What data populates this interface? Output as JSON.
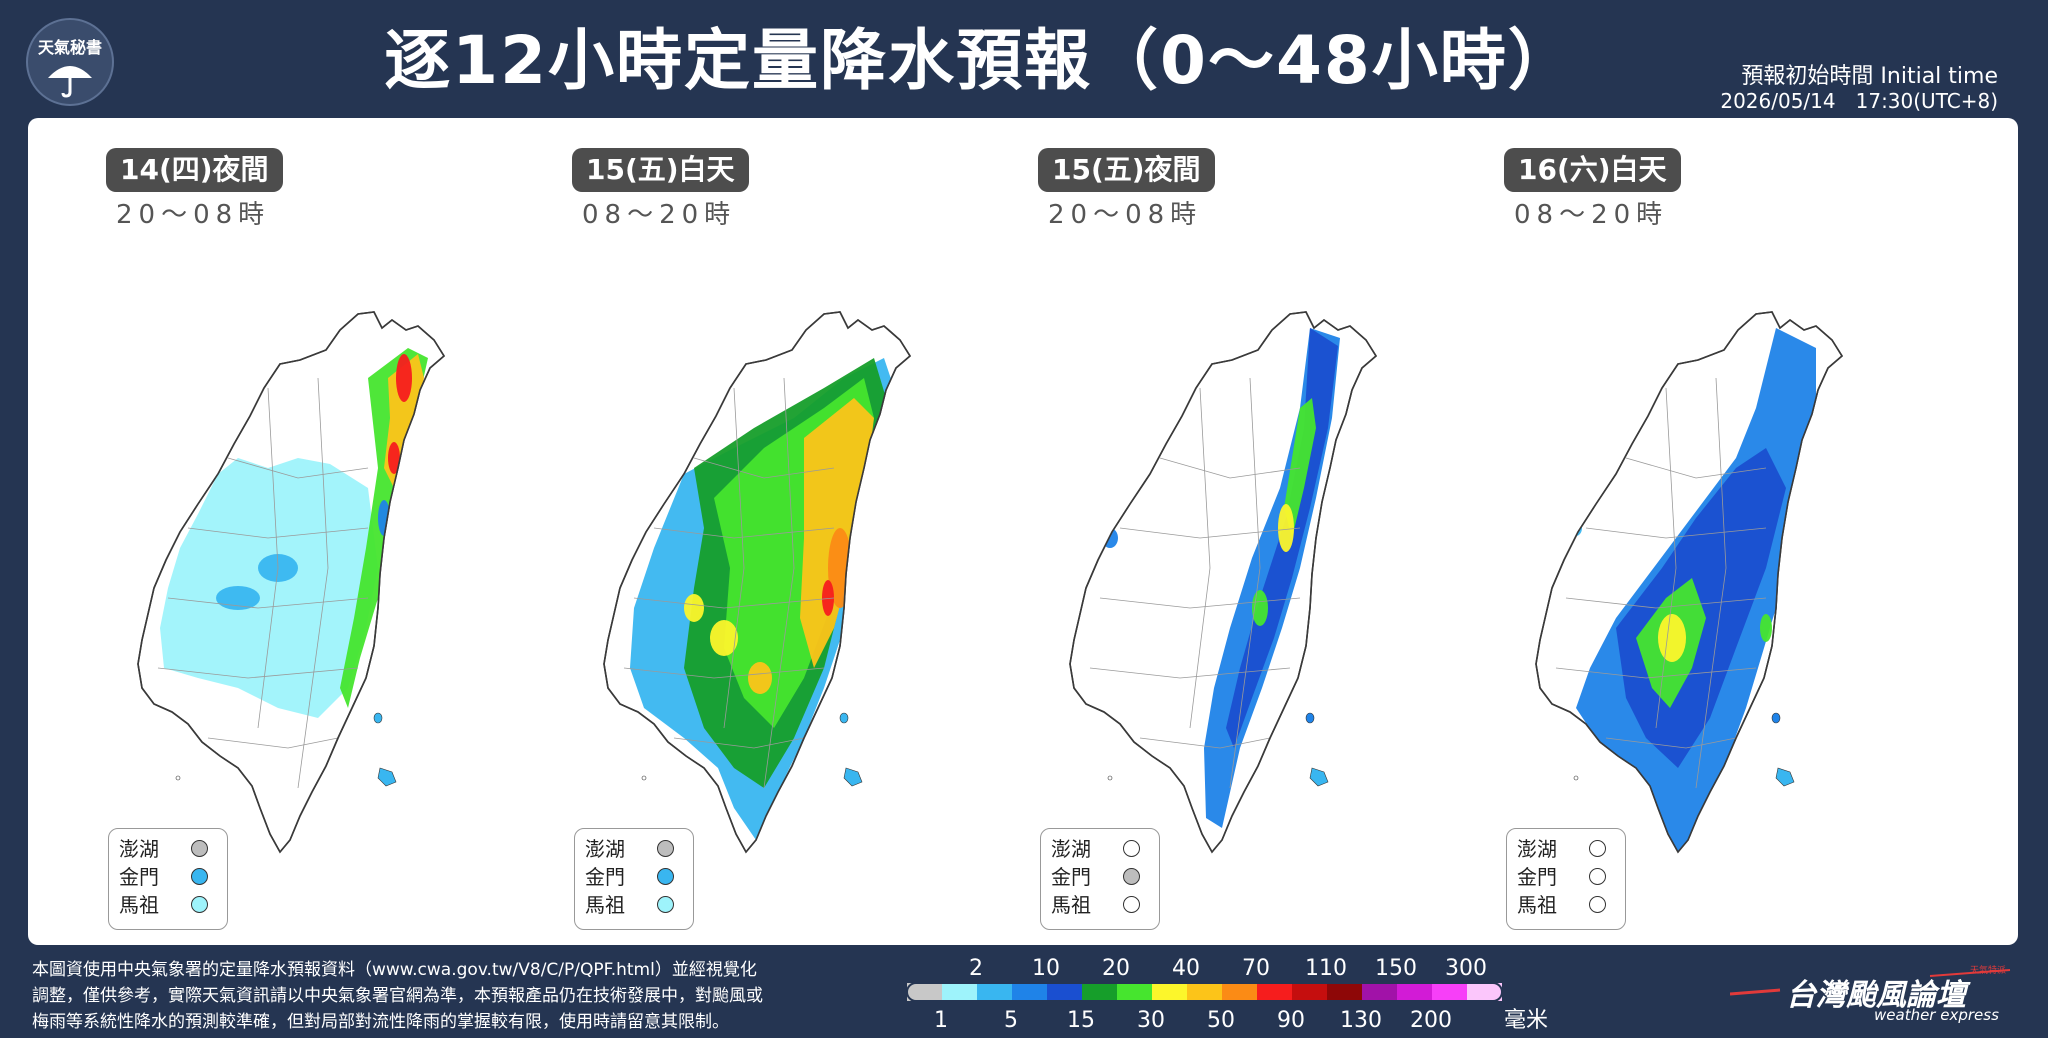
{
  "header": {
    "logo_text": "天氣秘書",
    "title": "逐12小時定量降水預報（0～48小時）",
    "init_time_label": "預報初始時間 Initial time",
    "init_time_value": "2026/05/14　17:30(UTC+8)"
  },
  "maps": [
    {
      "period": "14(四)夜間",
      "hours": "20～08時",
      "islands": [
        {
          "name": "澎湖",
          "color": "#bdbdbd"
        },
        {
          "name": "金門",
          "color": "#39b6f0"
        },
        {
          "name": "馬祖",
          "color": "#9ef3fb"
        }
      ]
    },
    {
      "period": "15(五)白天",
      "hours": "08～20時",
      "islands": [
        {
          "name": "澎湖",
          "color": "#bdbdbd"
        },
        {
          "name": "金門",
          "color": "#39b6f0"
        },
        {
          "name": "馬祖",
          "color": "#9ef3fb"
        }
      ]
    },
    {
      "period": "15(五)夜間",
      "hours": "20～08時",
      "islands": [
        {
          "name": "澎湖",
          "color": "#ffffff"
        },
        {
          "name": "金門",
          "color": "#bdbdbd"
        },
        {
          "name": "馬祖",
          "color": "#ffffff"
        }
      ]
    },
    {
      "period": "16(六)白天",
      "hours": "08～20時",
      "islands": [
        {
          "name": "澎湖",
          "color": "#ffffff"
        },
        {
          "name": "金門",
          "color": "#ffffff"
        },
        {
          "name": "馬祖",
          "color": "#ffffff"
        }
      ]
    }
  ],
  "footer_note": [
    "本圖資使用中央氣象署的定量降水預報資料（www.cwa.gov.tw/V8/C/P/QPF.html）並經視覺化",
    "調整，僅供參考，實際天氣資訊請以中央氣象署官網為準，本預報產品仍在技術發展中，對颱風或",
    "梅雨等系統性降水的預測較準確，但對局部對流性降雨的掌握較有限，使用時請留意其限制。"
  ],
  "scale": {
    "top_labels": [
      "2",
      "10",
      "20",
      "40",
      "70",
      "110",
      "150",
      "300"
    ],
    "bottom_labels": [
      "1",
      "5",
      "15",
      "30",
      "50",
      "90",
      "130",
      "200"
    ],
    "unit": "毫米",
    "colors": [
      "#c8c8c8",
      "#9ef3fb",
      "#39b6f0",
      "#1f83e8",
      "#1a4fd0",
      "#169e2a",
      "#46e52e",
      "#fcf62b",
      "#fcc419",
      "#fb8b15",
      "#f61d1d",
      "#c50e0e",
      "#8e0707",
      "#a112a8",
      "#d21bd6",
      "#f73ff8",
      "#fbc6fb"
    ]
  },
  "brand": {
    "name": "台灣颱風論壇",
    "sub": "weather express",
    "tag": "天氣特派"
  }
}
